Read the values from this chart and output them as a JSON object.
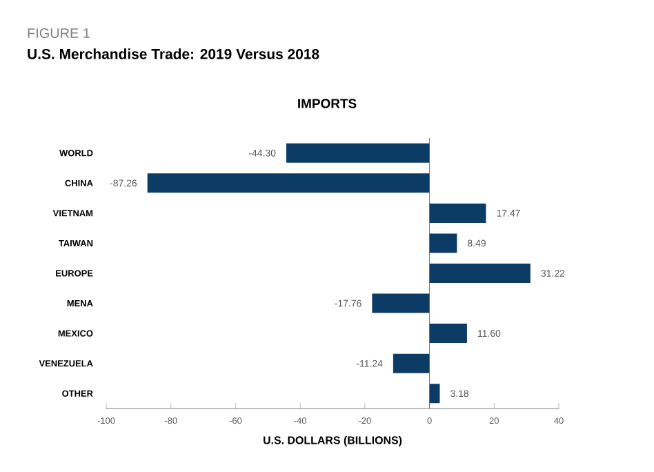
{
  "chart_data": {
    "type": "bar",
    "orientation": "horizontal",
    "title": "U.S. Merchandise Trade: 2019 Versus 2018",
    "subtitle": "IMPORTS",
    "annotations": [
      "FIGURE 1"
    ],
    "xlabel": "U.S. DOLLARS (BILLIONS)",
    "categories": [
      "WORLD",
      "CHINA",
      "VIETNAM",
      "TAIWAN",
      "EUROPE",
      "MENA",
      "MEXICO",
      "VENEZUELA",
      "OTHER"
    ],
    "values": [
      -44.3,
      -87.26,
      17.47,
      8.49,
      31.22,
      -17.76,
      11.6,
      -11.24,
      3.18
    ],
    "value_labels": [
      "-44.30",
      "-87.26",
      "17.47",
      "8.49",
      "31.22",
      "-17.76",
      "11.60",
      "-11.24",
      "3.18"
    ],
    "color": "#0c3b66",
    "xlim": [
      -100,
      40
    ],
    "xticks": [
      -100,
      -80,
      -60,
      -40,
      -20,
      0,
      20,
      40
    ]
  }
}
